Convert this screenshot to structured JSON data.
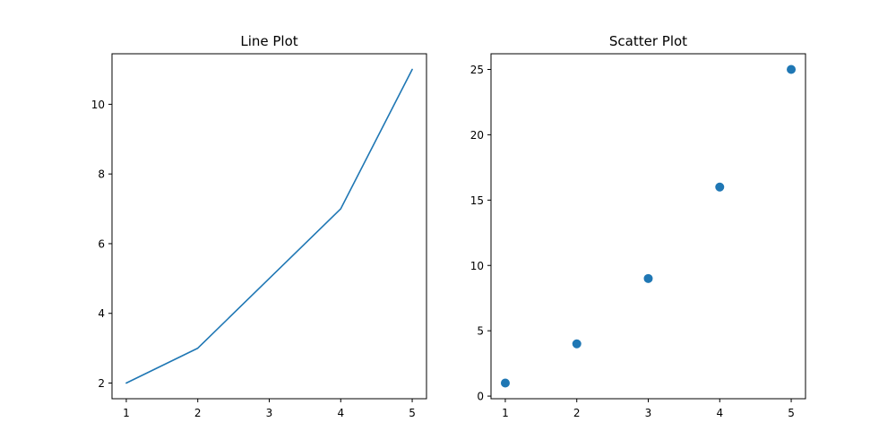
{
  "chart_data": [
    {
      "type": "line",
      "title": "Line Plot",
      "xlabel": "",
      "ylabel": "",
      "x": [
        1,
        2,
        3,
        4,
        5
      ],
      "y": [
        2,
        3,
        5,
        7,
        11
      ],
      "xlim": [
        0.8,
        5.2
      ],
      "ylim": [
        1.55,
        11.45
      ],
      "xticks": [
        1,
        2,
        3,
        4,
        5
      ],
      "yticks": [
        2,
        4,
        6,
        8,
        10
      ],
      "grid": false,
      "color": "#1f77b4"
    },
    {
      "type": "scatter",
      "title": "Scatter Plot",
      "xlabel": "",
      "ylabel": "",
      "x": [
        1,
        2,
        3,
        4,
        5
      ],
      "y": [
        1,
        4,
        9,
        16,
        25
      ],
      "xlim": [
        0.8,
        5.2
      ],
      "ylim": [
        -0.2,
        26.2
      ],
      "xticks": [
        1,
        2,
        3,
        4,
        5
      ],
      "yticks": [
        0,
        5,
        10,
        15,
        20,
        25
      ],
      "grid": false,
      "color": "#1f77b4"
    }
  ]
}
